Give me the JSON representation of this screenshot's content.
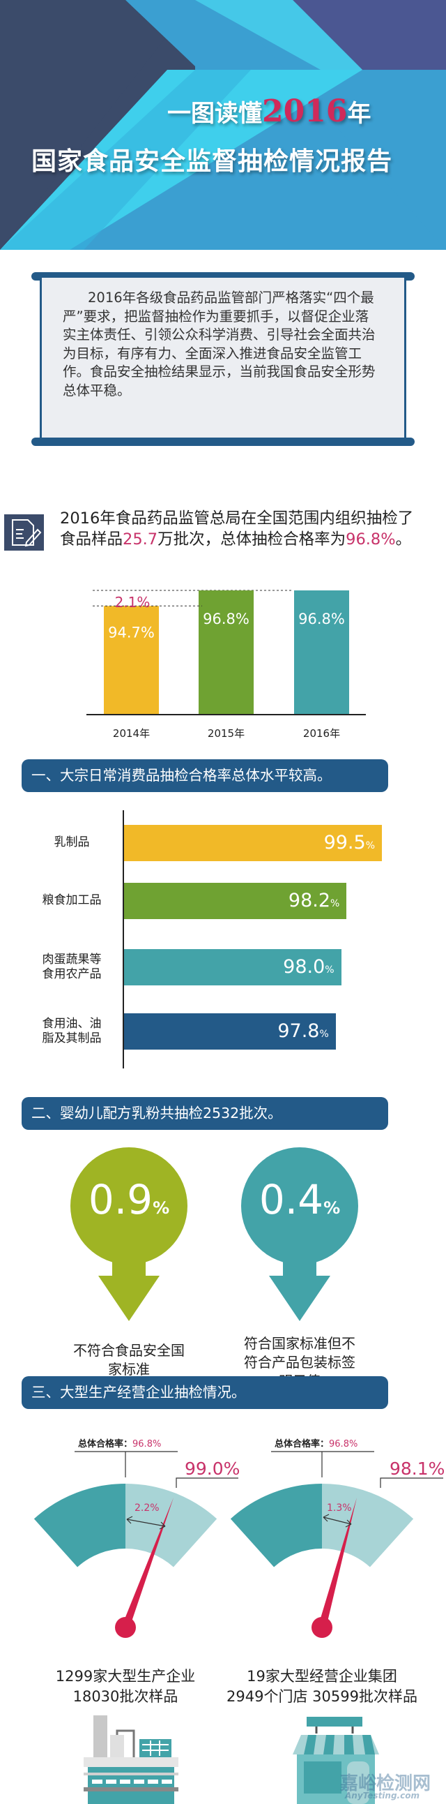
{
  "header": {
    "title_prefix": "一图读懂",
    "title_year": "2016",
    "title_suffix": "年",
    "title_line2": "国家食品安全监督抽检情况报告"
  },
  "intro": {
    "text": "2016年各级食品药品监管部门严格落实“四个最严”要求，把监督抽检作为重要抓手，以督促企业落实主体责任、引领公众科学消费、引导社会全面共治为目标，有序有力、全面深入推进食品安全监管工作。食品安全抽检结果显示，当前我国食品安全形势总体平稳。"
  },
  "summary": {
    "icon": "document-pen-icon",
    "text_a": "2016年食品药品监管总局在全国范围内组织抽检了食品样品",
    "samples": "25.7",
    "text_b": "万批次，总体抽检合格率为",
    "rate": "96.8%",
    "text_c": "。"
  },
  "chart_data": [
    {
      "type": "bar",
      "categories": [
        "2014年",
        "2015年",
        "2016年"
      ],
      "values": [
        94.7,
        96.8,
        96.8
      ],
      "value_labels": [
        "94.7%",
        "96.8%",
        "96.8%"
      ],
      "annotation": "2.1%",
      "colors": [
        "#f1b928",
        "#6fa232",
        "#43a3a8"
      ]
    },
    {
      "type": "bar",
      "orientation": "horizontal",
      "categories": [
        "乳制品",
        "粮食加工品",
        "肉蛋蔬果等\n食用农产品",
        "食用油、油\n脂及其制品"
      ],
      "values": [
        99.5,
        98.2,
        98.0,
        97.8
      ],
      "value_numbers": [
        "99.5",
        "98.2",
        "98.0",
        "97.8"
      ],
      "unit": "%",
      "colors": [
        "#f1b928",
        "#6fa232",
        "#43a3a8",
        "#235a88"
      ]
    }
  ],
  "sections": [
    {
      "heading": "一、大宗日常消费品抽检合格率总体水平较高。"
    },
    {
      "heading": "二、婴幼儿配方乳粉共抽检2532批次。",
      "drops": [
        {
          "value": "0.9",
          "unit": "%",
          "caption": "不符合食品安全国家标准",
          "color": "#9fb424"
        },
        {
          "value": "0.4",
          "unit": "%",
          "caption": "符合国家标准但不符合产品包装标签明示值",
          "color": "#43a3a8"
        }
      ]
    },
    {
      "heading": "三、大型生产经营企业抽检情况。",
      "gauges": [
        {
          "overall_label": "总体合格率：",
          "overall": "96.8%",
          "rate": "99.0%",
          "diff": "2.2%",
          "caption_1": "1299家大型生产企业",
          "caption_2": "18030批次样品",
          "icon": "factory-icon"
        },
        {
          "overall_label": "总体合格率：",
          "overall": "96.8%",
          "rate": "98.1%",
          "diff": "1.3%",
          "caption_1": "19家大型经营企业集团",
          "caption_2": "2949个门店 30599批次样品",
          "icon": "store-icon"
        }
      ]
    }
  ],
  "watermark": {
    "cn": "嘉峪检测网",
    "en": "AnyTesting.com"
  },
  "colors": {
    "navy": "#235a88",
    "pink": "#c8336a",
    "needle": "#d61f4b",
    "gauge_dark": "#43a3a8",
    "gauge_light": "#a8d4d6"
  }
}
